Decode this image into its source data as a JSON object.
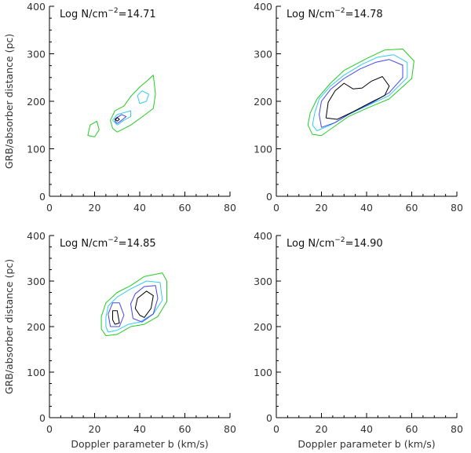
{
  "chart_data": [
    {
      "type": "contour",
      "title": {
        "prefix": "Log N/cm",
        "sup": "−2",
        "suffix": "=14.71"
      },
      "xlabel": "",
      "ylabel": "GRB/absorber distance (pc)",
      "xlim": [
        0,
        80
      ],
      "ylim": [
        0,
        400
      ],
      "xticks": [
        "0",
        "20",
        "40",
        "60",
        "80"
      ],
      "yticks": [
        "0",
        "100",
        "200",
        "300",
        "400"
      ],
      "contours": [
        {
          "color": "#22cc22",
          "points": [
            [
              20,
              125
            ],
            [
              22,
              140
            ],
            [
              21,
              158
            ],
            [
              18,
              150
            ],
            [
              17,
              128
            ],
            [
              20,
              125
            ]
          ]
        },
        {
          "color": "#22cc22",
          "points": [
            [
              30,
              135
            ],
            [
              36,
              150
            ],
            [
              41,
              167
            ],
            [
              46,
              185
            ],
            [
              47,
              215
            ],
            [
              46,
              255
            ],
            [
              43,
              242
            ],
            [
              40,
              230
            ],
            [
              36,
              210
            ],
            [
              33,
              190
            ],
            [
              29,
              180
            ],
            [
              27,
              160
            ],
            [
              28,
              143
            ],
            [
              30,
              135
            ]
          ]
        },
        {
          "color": "#33ccee",
          "points": [
            [
              30,
              150
            ],
            [
              33,
              160
            ],
            [
              36,
              168
            ],
            [
              36,
              180
            ],
            [
              33,
              176
            ],
            [
              30,
              172
            ],
            [
              28,
              160
            ],
            [
              30,
              150
            ]
          ]
        },
        {
          "color": "#33ccee",
          "points": [
            [
              40,
              195
            ],
            [
              43,
              200
            ],
            [
              44,
              215
            ],
            [
              41,
              222
            ],
            [
              39,
              212
            ],
            [
              40,
              195
            ]
          ]
        },
        {
          "color": "#4444ee",
          "points": [
            [
              30,
              153
            ],
            [
              32,
              160
            ],
            [
              34,
              168
            ],
            [
              32,
              172
            ],
            [
              30,
              166
            ],
            [
              29,
              158
            ],
            [
              30,
              153
            ]
          ]
        },
        {
          "color": "#000000",
          "points": [
            [
              30,
              158
            ],
            [
              31,
              162
            ],
            [
              30,
              166
            ],
            [
              29,
              162
            ],
            [
              30,
              158
            ]
          ]
        }
      ]
    },
    {
      "type": "contour",
      "title": {
        "prefix": "Log N/cm",
        "sup": "−2",
        "suffix": "=14.78"
      },
      "xlabel": "",
      "ylabel": "",
      "xlim": [
        0,
        80
      ],
      "ylim": [
        0,
        400
      ],
      "xticks": [
        "0",
        "20",
        "40",
        "60",
        "80"
      ],
      "yticks": [
        "0",
        "100",
        "200",
        "300",
        "400"
      ],
      "contours": [
        {
          "color": "#22cc22",
          "points": [
            [
              16,
              130
            ],
            [
              20,
              128
            ],
            [
              26,
              148
            ],
            [
              32,
              168
            ],
            [
              40,
              185
            ],
            [
              50,
              205
            ],
            [
              60,
              248
            ],
            [
              61,
              285
            ],
            [
              56,
              310
            ],
            [
              48,
              308
            ],
            [
              40,
              290
            ],
            [
              30,
              265
            ],
            [
              24,
              238
            ],
            [
              18,
              205
            ],
            [
              15,
              175
            ],
            [
              14,
              150
            ],
            [
              16,
              130
            ]
          ]
        },
        {
          "color": "#33ccee",
          "points": [
            [
              18,
              138
            ],
            [
              24,
              150
            ],
            [
              32,
              172
            ],
            [
              40,
              190
            ],
            [
              50,
              212
            ],
            [
              58,
              250
            ],
            [
              58,
              282
            ],
            [
              52,
              298
            ],
            [
              45,
              293
            ],
            [
              38,
              278
            ],
            [
              30,
              255
            ],
            [
              24,
              232
            ],
            [
              19,
              205
            ],
            [
              17,
              175
            ],
            [
              16,
              150
            ],
            [
              18,
              138
            ]
          ]
        },
        {
          "color": "#4444ee",
          "points": [
            [
              20,
              145
            ],
            [
              26,
              155
            ],
            [
              33,
              175
            ],
            [
              42,
              196
            ],
            [
              50,
              218
            ],
            [
              56,
              250
            ],
            [
              56,
              276
            ],
            [
              50,
              288
            ],
            [
              44,
              282
            ],
            [
              37,
              268
            ],
            [
              30,
              248
            ],
            [
              24,
              225
            ],
            [
              20,
              200
            ],
            [
              19,
              172
            ],
            [
              20,
              145
            ]
          ]
        },
        {
          "color": "#000000",
          "points": [
            [
              22,
              165
            ],
            [
              27,
              162
            ],
            [
              34,
              178
            ],
            [
              42,
              198
            ],
            [
              48,
              212
            ],
            [
              50,
              232
            ],
            [
              47,
              252
            ],
            [
              42,
              242
            ],
            [
              38,
              228
            ],
            [
              34,
              226
            ],
            [
              30,
              238
            ],
            [
              26,
              222
            ],
            [
              23,
              198
            ],
            [
              22,
              165
            ]
          ]
        }
      ]
    },
    {
      "type": "contour",
      "title": {
        "prefix": "Log N/cm",
        "sup": "−2",
        "suffix": "=14.85"
      },
      "xlabel": "Doppler parameter b (km/s)",
      "ylabel": "GRB/absorber distance (pc)",
      "xlim": [
        0,
        80
      ],
      "ylim": [
        0,
        400
      ],
      "xticks": [
        "0",
        "20",
        "40",
        "60",
        "80"
      ],
      "yticks": [
        "0",
        "100",
        "200",
        "300",
        "400"
      ],
      "contours": [
        {
          "color": "#22cc22",
          "points": [
            [
              25,
              180
            ],
            [
              30,
              183
            ],
            [
              36,
              200
            ],
            [
              42,
              205
            ],
            [
              48,
              222
            ],
            [
              52,
              255
            ],
            [
              52,
              300
            ],
            [
              50,
              318
            ],
            [
              42,
              310
            ],
            [
              36,
              290
            ],
            [
              30,
              275
            ],
            [
              25,
              252
            ],
            [
              23,
              222
            ],
            [
              23,
              195
            ],
            [
              25,
              180
            ]
          ]
        },
        {
          "color": "#33ccee",
          "points": [
            [
              26,
              188
            ],
            [
              30,
              192
            ],
            [
              35,
              205
            ],
            [
              40,
              210
            ],
            [
              46,
              228
            ],
            [
              50,
              258
            ],
            [
              49,
              297
            ],
            [
              43,
              300
            ],
            [
              36,
              283
            ],
            [
              30,
              265
            ],
            [
              26,
              245
            ],
            [
              25,
              220
            ],
            [
              25,
              200
            ],
            [
              26,
              188
            ]
          ]
        },
        {
          "color": "#4444ee",
          "points": [
            [
              27,
              200
            ],
            [
              31,
              200
            ],
            [
              33,
              225
            ],
            [
              31,
              252
            ],
            [
              28,
              252
            ],
            [
              26,
              228
            ],
            [
              27,
              200
            ]
          ]
        },
        {
          "color": "#4444ee",
          "points": [
            [
              37,
              218
            ],
            [
              41,
              210
            ],
            [
              46,
              228
            ],
            [
              48,
              262
            ],
            [
              47,
              290
            ],
            [
              42,
              288
            ],
            [
              38,
              272
            ],
            [
              36,
              250
            ],
            [
              37,
              218
            ]
          ]
        },
        {
          "color": "#000000",
          "points": [
            [
              29,
              205
            ],
            [
              31,
              208
            ],
            [
              30,
              235
            ],
            [
              28,
              235
            ],
            [
              28,
              215
            ],
            [
              29,
              205
            ]
          ]
        },
        {
          "color": "#000000",
          "points": [
            [
              40,
              225
            ],
            [
              42,
              220
            ],
            [
              45,
              240
            ],
            [
              46,
              268
            ],
            [
              43,
              278
            ],
            [
              39,
              262
            ],
            [
              38,
              240
            ],
            [
              40,
              225
            ]
          ]
        }
      ]
    },
    {
      "type": "contour",
      "title": {
        "prefix": "Log N/cm",
        "sup": "−2",
        "suffix": "=14.90"
      },
      "xlabel": "Doppler parameter b (km/s)",
      "ylabel": "",
      "xlim": [
        0,
        80
      ],
      "ylim": [
        0,
        400
      ],
      "xticks": [
        "0",
        "20",
        "40",
        "60",
        "80"
      ],
      "yticks": [
        "0",
        "100",
        "200",
        "300",
        "400"
      ],
      "contours": []
    }
  ]
}
